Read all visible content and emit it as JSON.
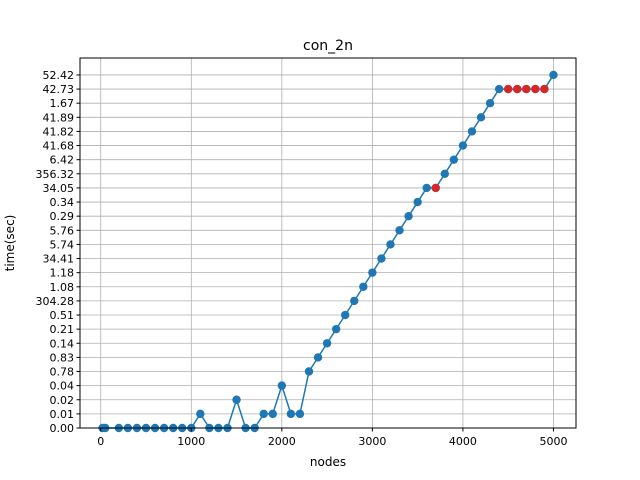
{
  "chart_data": {
    "type": "line",
    "title": "con_2n",
    "x_label": "nodes",
    "y_label": "time(sec)",
    "y_categories": [
      "0.00",
      "0.01",
      "0.02",
      "0.04",
      "0.78",
      "0.83",
      "0.14",
      "0.21",
      "0.51",
      "304.28",
      "1.08",
      "1.18",
      "34.41",
      "5.74",
      "5.76",
      "0.29",
      "0.34",
      "34.05",
      "356.32",
      "6.42",
      "41.68",
      "41.82",
      "41.89",
      "1.67",
      "42.73",
      "52.42"
    ],
    "xlim": [
      -229,
      5249
    ],
    "xticks": [
      0,
      1000,
      2000,
      3000,
      4000,
      5000
    ],
    "grid": true,
    "series": [
      {
        "color": "#1f77b4",
        "line": true,
        "x": [
          20,
          50,
          200,
          300,
          400,
          500,
          600,
          700,
          800,
          900,
          1000,
          1100,
          1200,
          1300,
          1400,
          1500,
          1600,
          1700,
          1800,
          1900,
          2000,
          2100,
          2200,
          2300,
          2400,
          2500,
          2600,
          2700,
          2800,
          2900,
          3000,
          3100,
          3200,
          3300,
          3400,
          3500,
          3600,
          3700,
          3800,
          3900,
          4000,
          4100,
          4200,
          4300,
          4400,
          4500,
          4600,
          4700,
          4800,
          4900,
          5000
        ],
        "values": [
          "0.00",
          "0.00",
          "0.00",
          "0.00",
          "0.00",
          "0.00",
          "0.00",
          "0.00",
          "0.00",
          "0.00",
          "0.00",
          "0.01",
          "0.00",
          "0.00",
          "0.00",
          "0.02",
          "0.00",
          "0.00",
          "0.01",
          "0.01",
          "0.04",
          "0.01",
          "0.01",
          "0.78",
          "0.83",
          "0.14",
          "0.21",
          "0.51",
          "304.28",
          "1.08",
          "1.18",
          "34.41",
          "5.74",
          "5.76",
          "0.29",
          "0.34",
          "34.05",
          "34.05",
          "356.32",
          "6.42",
          "41.68",
          "41.82",
          "41.89",
          "1.67",
          "42.73",
          "42.73",
          "42.73",
          "42.73",
          "42.73",
          "42.73",
          "52.42"
        ]
      },
      {
        "color": "#d62728",
        "line": false,
        "x": [
          3700,
          4500,
          4600,
          4700,
          4800,
          4900
        ],
        "values": [
          "34.05",
          "42.73",
          "42.73",
          "42.73",
          "42.73",
          "42.73"
        ]
      }
    ]
  }
}
